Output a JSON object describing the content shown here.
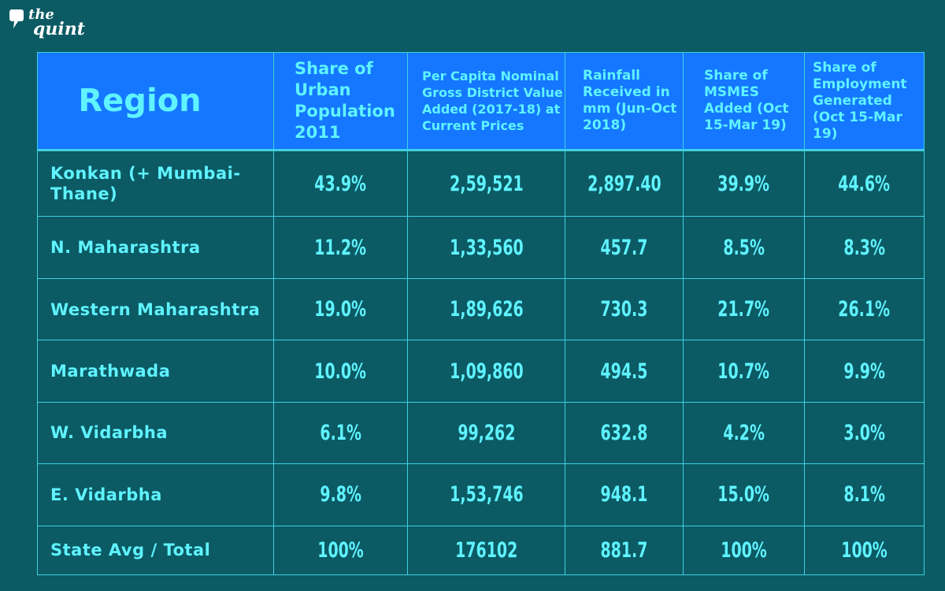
{
  "brand": {
    "line1": "the",
    "line2": "quint"
  },
  "columns": [
    "Region",
    "Share of Urban Population 2011",
    "Per Capita Nominal Gross District Value Added (2017-18) at Current Prices",
    "Rainfall Received in mm (Jun-Oct 2018)",
    "Share of MSMES Added (Oct 15-Mar 19)",
    "Share of Employment Generated (Oct 15-Mar 19)"
  ],
  "rows": [
    [
      "Konkan (+ Mumbai-Thane)",
      "43.9%",
      "2,59,521",
      "2,897.40",
      "39.9%",
      "44.6%"
    ],
    [
      "N. Maharashtra",
      "11.2%",
      "1,33,560",
      "457.7",
      "8.5%",
      "8.3%"
    ],
    [
      "Western Maharashtra",
      "19.0%",
      "1,89,626",
      "730.3",
      "21.7%",
      "26.1%"
    ],
    [
      "Marathwada",
      "10.0%",
      "1,09,860",
      "494.5",
      "10.7%",
      "9.9%"
    ],
    [
      "W. Vidarbha",
      "6.1%",
      "99,262",
      "632.8",
      "4.2%",
      "3.0%"
    ],
    [
      "E. Vidarbha",
      "9.8%",
      "1,53,746",
      "948.1",
      "15.0%",
      "8.1%"
    ],
    [
      "State Avg / Total",
      "100%",
      "176102",
      "881.7",
      "100%",
      "100%"
    ]
  ],
  "colors": {
    "background": "#0b5a64",
    "header_bg": "#1577ff",
    "text": "#5ff3ff"
  }
}
